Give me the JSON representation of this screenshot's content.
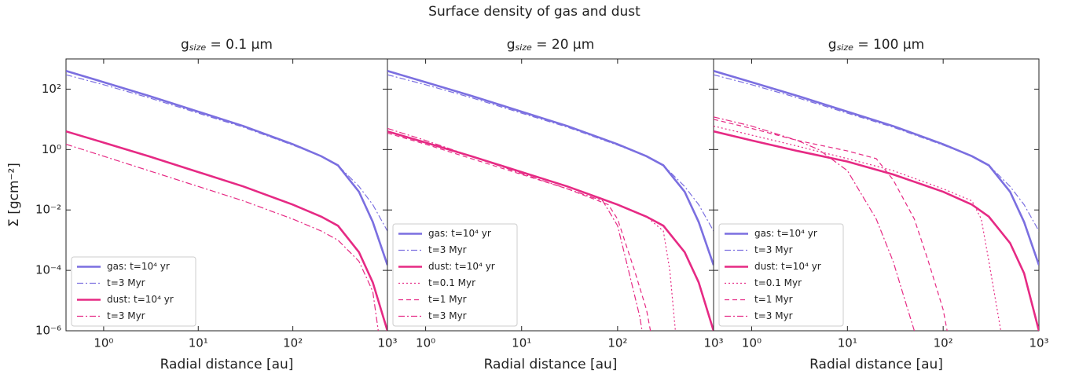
{
  "title": "Surface density of gas and dust",
  "chart_data": [
    {
      "type": "line",
      "title": "gsize = 0.1 μm",
      "xlabel": "Radial distance [au]",
      "ylabel": "Σ [gcm⁻²]",
      "xscale": "log",
      "yscale": "log",
      "xlim": [
        0.4,
        1000
      ],
      "ylim": [
        1e-06,
        1000
      ],
      "xticks": [
        {
          "value": 1,
          "label": "10⁰"
        },
        {
          "value": 10,
          "label": "10¹"
        },
        {
          "value": 100,
          "label": "10²"
        },
        {
          "value": 1000,
          "label": "10³"
        }
      ],
      "yticks": [
        {
          "value": 1e-06,
          "label": "10⁻⁶"
        },
        {
          "value": 0.0001,
          "label": "10⁻⁴"
        },
        {
          "value": 0.01,
          "label": "10⁻²"
        },
        {
          "value": 1,
          "label": "10⁰"
        },
        {
          "value": 100,
          "label": "10²"
        }
      ],
      "legend": "lower left",
      "series": [
        {
          "name": "gas: t=10⁴ yr",
          "color": "#7b6fe0",
          "style": "solid",
          "x": [
            0.4,
            1,
            3,
            10,
            30,
            100,
            200,
            300,
            500,
            700,
            1000
          ],
          "values": [
            400,
            170,
            60,
            18,
            6,
            1.5,
            0.6,
            0.3,
            0.04,
            0.004,
            0.00015
          ]
        },
        {
          "name": "t=3 Myr",
          "color": "#7b6fe0",
          "style": "dashdot",
          "x": [
            0.4,
            1,
            3,
            10,
            30,
            100,
            200,
            300,
            500,
            700,
            1000
          ],
          "values": [
            300,
            140,
            52,
            16,
            5.5,
            1.4,
            0.6,
            0.3,
            0.06,
            0.015,
            0.002
          ]
        },
        {
          "name": "dust: t=10⁴ yr",
          "color": "#e62a84",
          "style": "solid",
          "x": [
            0.4,
            1,
            3,
            10,
            30,
            100,
            200,
            300,
            500,
            700,
            1000
          ],
          "values": [
            4,
            1.7,
            0.6,
            0.18,
            0.06,
            0.015,
            0.006,
            0.003,
            0.0004,
            4e-05,
            1e-06
          ]
        },
        {
          "name": "t=3 Myr",
          "color": "#e62a84",
          "style": "dashdot",
          "x": [
            0.4,
            1,
            3,
            10,
            30,
            100,
            200,
            300,
            500,
            700,
            800
          ],
          "values": [
            1.5,
            0.6,
            0.2,
            0.06,
            0.02,
            0.005,
            0.002,
            0.001,
            0.0002,
            2e-05,
            1e-06
          ]
        }
      ]
    },
    {
      "type": "line",
      "title": "gsize = 20 μm",
      "xlabel": "Radial distance [au]",
      "sharey": true,
      "xscale": "log",
      "yscale": "log",
      "xlim": [
        0.4,
        1000
      ],
      "ylim": [
        1e-06,
        1000
      ],
      "xticks": [
        {
          "value": 1,
          "label": "10⁰"
        },
        {
          "value": 10,
          "label": "10¹"
        },
        {
          "value": 100,
          "label": "10²"
        },
        {
          "value": 1000,
          "label": "10³"
        }
      ],
      "legend": "lower left",
      "series": [
        {
          "name": "gas: t=10⁴ yr",
          "color": "#7b6fe0",
          "style": "solid",
          "x": [
            0.4,
            1,
            3,
            10,
            30,
            100,
            200,
            300,
            500,
            700,
            1000
          ],
          "values": [
            400,
            170,
            60,
            18,
            6,
            1.5,
            0.6,
            0.3,
            0.04,
            0.004,
            0.00015
          ]
        },
        {
          "name": "t=3 Myr",
          "color": "#7b6fe0",
          "style": "dashdot",
          "x": [
            0.4,
            1,
            3,
            10,
            30,
            100,
            200,
            300,
            500,
            700,
            1000
          ],
          "values": [
            300,
            140,
            52,
            16,
            5.5,
            1.4,
            0.6,
            0.3,
            0.06,
            0.015,
            0.002
          ]
        },
        {
          "name": "dust: t=10⁴ yr",
          "color": "#e62a84",
          "style": "solid",
          "x": [
            0.4,
            1,
            3,
            10,
            30,
            100,
            200,
            300,
            500,
            700,
            1000
          ],
          "values": [
            4,
            1.7,
            0.6,
            0.18,
            0.06,
            0.015,
            0.006,
            0.003,
            0.0004,
            4e-05,
            1e-06
          ]
        },
        {
          "name": "t=0.1 Myr",
          "color": "#e62a84",
          "style": "dotted",
          "x": [
            0.4,
            1,
            3,
            10,
            30,
            100,
            200,
            300,
            350,
            400
          ],
          "values": [
            4,
            1.7,
            0.6,
            0.18,
            0.06,
            0.015,
            0.006,
            0.002,
            0.0001,
            1e-06
          ]
        },
        {
          "name": "t=1 Myr",
          "color": "#e62a84",
          "style": "dashed",
          "x": [
            0.4,
            1,
            3,
            10,
            30,
            80,
            100,
            150,
            200,
            220
          ],
          "values": [
            3.5,
            1.5,
            0.5,
            0.15,
            0.05,
            0.015,
            0.005,
            0.0001,
            5e-06,
            1e-06
          ]
        },
        {
          "name": "t=3 Myr",
          "color": "#e62a84",
          "style": "dashdot",
          "x": [
            0.4,
            1,
            3,
            10,
            30,
            70,
            100,
            130,
            170,
            180
          ],
          "values": [
            5,
            2,
            0.6,
            0.16,
            0.05,
            0.02,
            0.003,
            0.0001,
            3e-06,
            1e-06
          ]
        }
      ]
    },
    {
      "type": "line",
      "title": "gsize = 100 μm",
      "xlabel": "Radial distance [au]",
      "sharey": true,
      "xscale": "log",
      "yscale": "log",
      "xlim": [
        0.4,
        1000
      ],
      "ylim": [
        1e-06,
        1000
      ],
      "xticks": [
        {
          "value": 1,
          "label": "10⁰"
        },
        {
          "value": 10,
          "label": "10¹"
        },
        {
          "value": 100,
          "label": "10²"
        },
        {
          "value": 1000,
          "label": "10³"
        }
      ],
      "legend": "lower left",
      "series": [
        {
          "name": "gas: t=10⁴ yr",
          "color": "#7b6fe0",
          "style": "solid",
          "x": [
            0.4,
            1,
            3,
            10,
            30,
            100,
            200,
            300,
            500,
            700,
            1000
          ],
          "values": [
            400,
            170,
            60,
            18,
            6,
            1.5,
            0.6,
            0.3,
            0.04,
            0.004,
            0.00015
          ]
        },
        {
          "name": "t=3 Myr",
          "color": "#7b6fe0",
          "style": "dashdot",
          "x": [
            0.4,
            1,
            3,
            10,
            30,
            100,
            200,
            300,
            500,
            700,
            1000
          ],
          "values": [
            300,
            140,
            52,
            16,
            5.5,
            1.4,
            0.6,
            0.3,
            0.06,
            0.015,
            0.002
          ]
        },
        {
          "name": "dust: t=10⁴ yr",
          "color": "#e62a84",
          "style": "solid",
          "x": [
            0.4,
            1,
            3,
            10,
            30,
            100,
            200,
            300,
            500,
            700,
            1000
          ],
          "values": [
            4,
            2,
            0.9,
            0.4,
            0.15,
            0.04,
            0.015,
            0.006,
            0.0008,
            8e-05,
            1e-06
          ]
        },
        {
          "name": "t=0.1 Myr",
          "color": "#e62a84",
          "style": "dotted",
          "x": [
            0.4,
            1,
            3,
            10,
            30,
            100,
            200,
            250,
            300,
            400
          ],
          "values": [
            6,
            3,
            1.3,
            0.5,
            0.2,
            0.05,
            0.02,
            0.005,
            0.0002,
            1e-06
          ]
        },
        {
          "name": "t=1 Myr",
          "color": "#e62a84",
          "style": "dashed",
          "x": [
            0.4,
            1,
            3,
            10,
            20,
            30,
            50,
            70,
            100,
            110
          ],
          "values": [
            10,
            5,
            2,
            0.9,
            0.5,
            0.1,
            0.005,
            0.0002,
            5e-06,
            1e-06
          ]
        },
        {
          "name": "t=3 Myr",
          "color": "#e62a84",
          "style": "dashdot",
          "x": [
            0.4,
            1,
            3,
            5,
            10,
            20,
            30,
            40,
            50
          ],
          "values": [
            12,
            6,
            2,
            1,
            0.2,
            0.005,
            0.0002,
            1e-05,
            1e-06
          ]
        }
      ]
    }
  ]
}
